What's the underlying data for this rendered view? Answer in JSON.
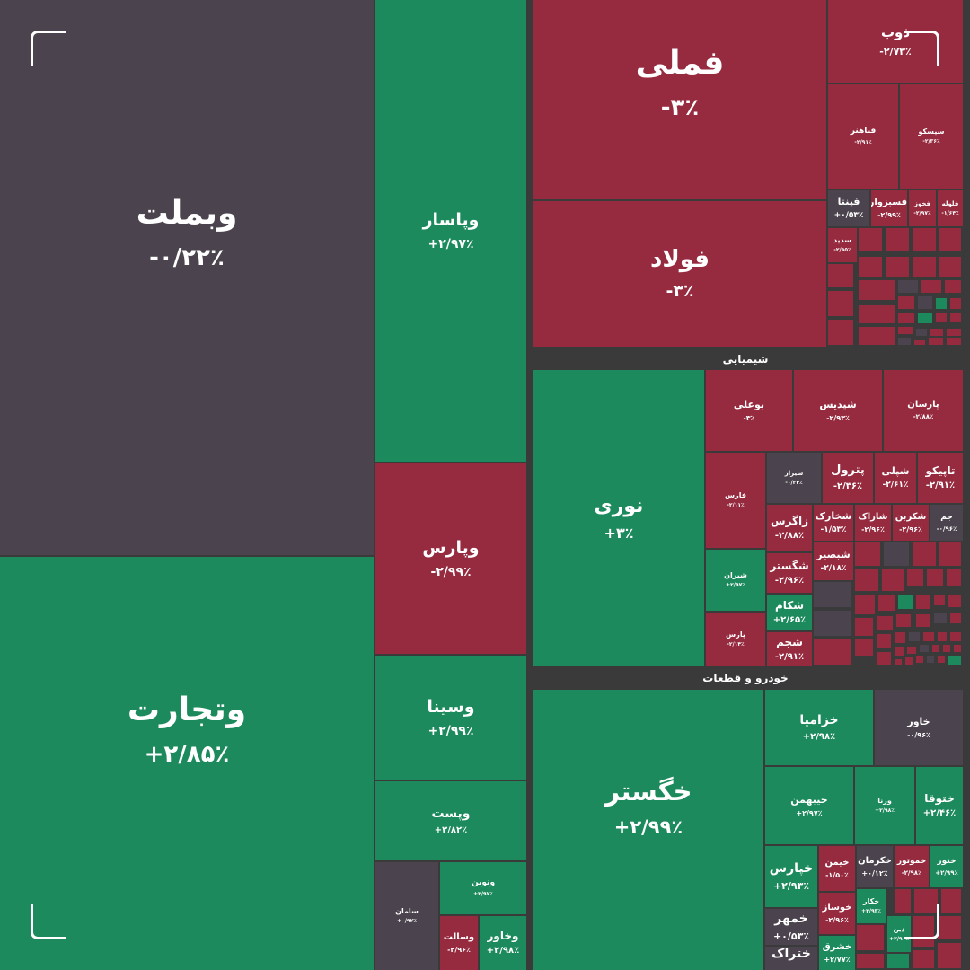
{
  "colors": {
    "up": "#1c8a5c",
    "down": "#962b40",
    "flat": "#4b434d",
    "background": "#3a3a3a",
    "text": "#ffffff"
  },
  "sectors": [
    {
      "id": "chemical",
      "label": "شیمیایی"
    },
    {
      "id": "auto",
      "label": "خودرو و قطعات"
    }
  ],
  "chart_data": {
    "type": "treemap",
    "value_unit": "%",
    "tiles": [
      {
        "id": "vbmellat",
        "name": "وبملت",
        "change_label": "-۰/۲۲٪",
        "change": -0.22
      },
      {
        "id": "vtejarat",
        "name": "وتجارت",
        "change_label": "+۲/۸۵٪",
        "change": 2.85
      },
      {
        "id": "vpasar",
        "name": "وپاسار",
        "change_label": "+۲/۹۷٪",
        "change": 2.97
      },
      {
        "id": "vpars",
        "name": "وپارس",
        "change_label": "-۲/۹۹٪",
        "change": -2.99
      },
      {
        "id": "vsina",
        "name": "وسینا",
        "change_label": "+۲/۹۹٪",
        "change": 2.99
      },
      {
        "id": "vpost",
        "name": "وپست",
        "change_label": "+۲/۸۲٪",
        "change": 2.82
      },
      {
        "id": "saman",
        "name": "سامان",
        "change_label": "+۰/۹۲٪",
        "change": 0.92
      },
      {
        "id": "vnovin",
        "name": "ونوین",
        "change_label": "+۲/۹۷٪",
        "change": 2.97
      },
      {
        "id": "vsalat",
        "name": "وسالت",
        "change_label": "-۲/۹۶٪",
        "change": -2.96
      },
      {
        "id": "vkhavar",
        "name": "وخاور",
        "change_label": "+۲/۹۸٪",
        "change": 2.98
      },
      {
        "id": "fameli",
        "name": "فملی",
        "change_label": "-۳٪",
        "change": -3
      },
      {
        "id": "foolad",
        "name": "فولاد",
        "change_label": "-۳٪",
        "change": -3
      },
      {
        "id": "zob",
        "name": "ذوب",
        "change_label": "-۲/۷۳٪",
        "change": -2.73
      },
      {
        "id": "fabahonar",
        "name": "فباهنر",
        "change_label": "-۲/۹۱٪",
        "change": -2.91
      },
      {
        "id": "siskou",
        "name": "سیسکو",
        "change_label": "-۲/۳۶٪",
        "change": -2.36
      },
      {
        "id": "fenta",
        "name": "فپنتا",
        "change_label": "+۰/۵۳٪",
        "change": 0.53
      },
      {
        "id": "fesabzevar",
        "name": "فسبزوار",
        "change_label": "-۲/۹۹٪",
        "change": -2.99
      },
      {
        "id": "fekhooz",
        "name": "فخوز",
        "change_label": "-۲/۹۷٪",
        "change": -2.97
      },
      {
        "id": "feloole",
        "name": "فلوله",
        "change_label": "-۱/۶۴٪",
        "change": -1.64
      },
      {
        "id": "sadid",
        "name": "سدید",
        "change_label": "-۲/۹۵٪",
        "change": -2.95
      },
      {
        "id": "noori",
        "name": "نوری",
        "change_label": "+۳٪",
        "change": 3
      },
      {
        "id": "buali",
        "name": "بوعلی",
        "change_label": "-۳٪",
        "change": -3
      },
      {
        "id": "shepdis",
        "name": "شپدیس",
        "change_label": "-۲/۹۳٪",
        "change": -2.93
      },
      {
        "id": "parsan",
        "name": "پارسان",
        "change_label": "-۲/۸۸٪",
        "change": -2.88
      },
      {
        "id": "fars",
        "name": "فارس",
        "change_label": "-۲/۱۱٪",
        "change": -2.11
      },
      {
        "id": "shiraz",
        "name": "شیراز",
        "change_label": "-۰/۲۴٪",
        "change": -0.24
      },
      {
        "id": "petrol",
        "name": "پترول",
        "change_label": "-۲/۳۶٪",
        "change": -2.36
      },
      {
        "id": "sheli",
        "name": "شپلی",
        "change_label": "-۲/۶۱٪",
        "change": -2.61
      },
      {
        "id": "tapiko",
        "name": "تاپیکو",
        "change_label": "-۲/۹۱٪",
        "change": -2.91
      },
      {
        "id": "zagros",
        "name": "زاگرس",
        "change_label": "-۲/۸۸٪",
        "change": -2.88
      },
      {
        "id": "shekharak",
        "name": "شخارک",
        "change_label": "-۱/۵۳٪",
        "change": -1.53
      },
      {
        "id": "sharak",
        "name": "شاراک",
        "change_label": "-۲/۹۶٪",
        "change": -2.96
      },
      {
        "id": "shekarbon",
        "name": "شکربن",
        "change_label": "-۲/۹۶٪",
        "change": -2.96
      },
      {
        "id": "jam",
        "name": "جم",
        "change_label": "-۰/۹۶٪",
        "change": -0.96
      },
      {
        "id": "shiran",
        "name": "شیران",
        "change_label": "+۲/۹۷٪",
        "change": 2.97
      },
      {
        "id": "shegostar",
        "name": "شگستر",
        "change_label": "-۲/۹۶٪",
        "change": -2.96
      },
      {
        "id": "shebesbir",
        "name": "شبصیر",
        "change_label": "-۲/۱۸٪",
        "change": -2.18
      },
      {
        "id": "shekam",
        "name": "شکام",
        "change_label": "+۲/۶۵٪",
        "change": 2.65
      },
      {
        "id": "pars",
        "name": "پارس",
        "change_label": "-۲/۱۴٪",
        "change": -2.14
      },
      {
        "id": "shejam",
        "name": "شجم",
        "change_label": "-۲/۹۱٪",
        "change": -2.91
      },
      {
        "id": "khegostar",
        "name": "خگستر",
        "change_label": "+۲/۹۹٪",
        "change": 2.99
      },
      {
        "id": "khazamia",
        "name": "خزامیا",
        "change_label": "+۲/۹۸٪",
        "change": 2.98
      },
      {
        "id": "khavar",
        "name": "خاور",
        "change_label": "-۰/۹۶٪",
        "change": -0.96
      },
      {
        "id": "kheibahman",
        "name": "خیبهمن",
        "change_label": "+۲/۹۷٪",
        "change": 2.97
      },
      {
        "id": "vrana",
        "name": "ورنا",
        "change_label": "+۲/۹۸٪",
        "change": 2.98
      },
      {
        "id": "khetoga",
        "name": "ختوقا",
        "change_label": "+۲/۴۶٪",
        "change": 2.46
      },
      {
        "id": "khepars",
        "name": "خپارس",
        "change_label": "+۲/۹۳٪",
        "change": 2.93
      },
      {
        "id": "kheimen",
        "name": "خیمن",
        "change_label": "-۱/۵۰٪",
        "change": -1.5
      },
      {
        "id": "khekerman",
        "name": "خکرمان",
        "change_label": "+۰/۱۲٪",
        "change": 0.12
      },
      {
        "id": "khemootor",
        "name": "خموتور",
        "change_label": "-۲/۹۸٪",
        "change": -2.98
      },
      {
        "id": "khenor",
        "name": "خنور",
        "change_label": "+۲/۹۹٪",
        "change": 2.99
      },
      {
        "id": "khomehr",
        "name": "خمهر",
        "change_label": "+۰/۵۳٪",
        "change": 0.53
      },
      {
        "id": "khosaz",
        "name": "خوساز",
        "change_label": "-۲/۹۶٪",
        "change": -2.96
      },
      {
        "id": "khekar",
        "name": "خکار",
        "change_label": "+۲/۹۳٪",
        "change": 2.93
      },
      {
        "id": "zin",
        "name": "ذین",
        "change_label": "+۲/۹۰٪",
        "change": 2.9
      },
      {
        "id": "khetrak",
        "name": "ختراک",
        "change_label": "",
        "change": null
      },
      {
        "id": "khesharq",
        "name": "خشرق",
        "change_label": "+۲/۷۷٪",
        "change": 2.77
      }
    ]
  }
}
